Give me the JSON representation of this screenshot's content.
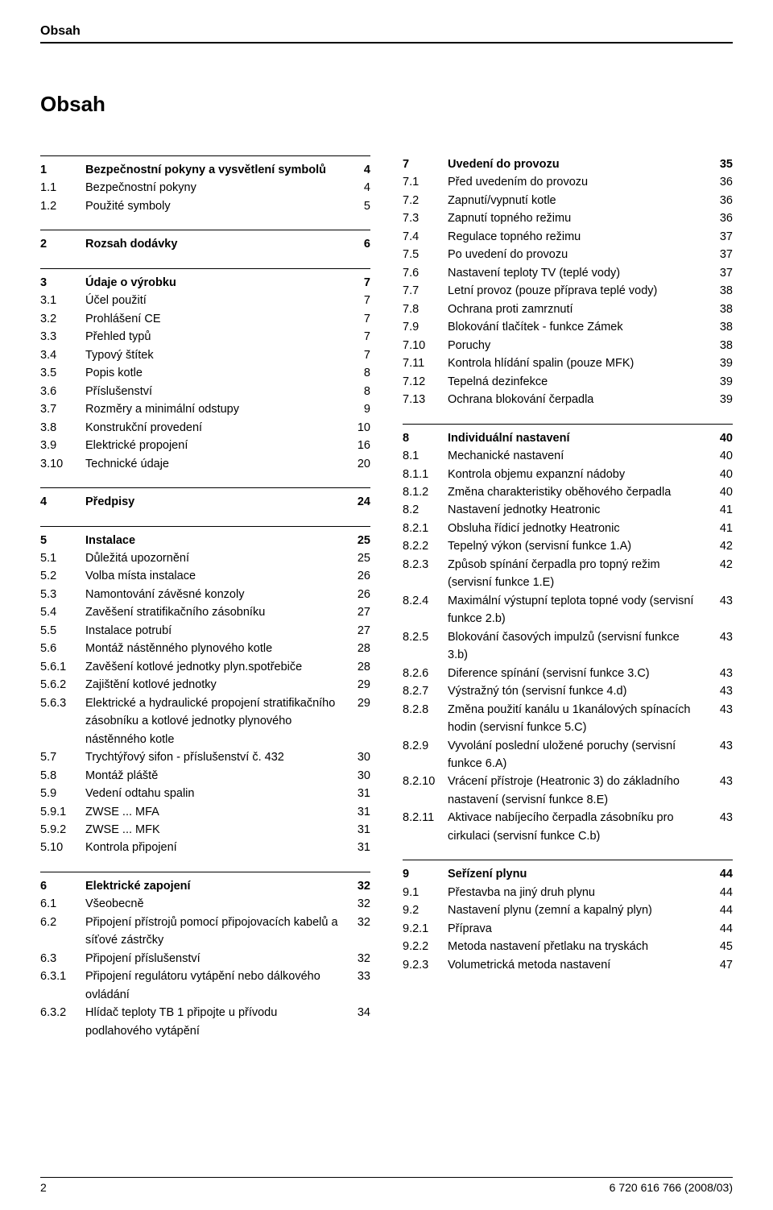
{
  "header": "Obsah",
  "title": "Obsah",
  "footer": {
    "pageNum": "2",
    "docId": "6 720 616 766 (2008/03)"
  },
  "left": [
    {
      "type": "section",
      "rows": [
        {
          "n": "1",
          "t": "Bezpečnostní pokyny a vysvětlení symbolů",
          "p": "4",
          "bold": true
        },
        {
          "n": "1.1",
          "t": "Bezpečnostní pokyny",
          "p": "4"
        },
        {
          "n": "1.2",
          "t": "Použité symboly",
          "p": "5"
        }
      ]
    },
    {
      "type": "section",
      "rows": [
        {
          "n": "2",
          "t": "Rozsah dodávky",
          "p": "6",
          "bold": true
        }
      ]
    },
    {
      "type": "section",
      "rows": [
        {
          "n": "3",
          "t": "Údaje o výrobku",
          "p": "7",
          "bold": true
        },
        {
          "n": "3.1",
          "t": "Účel použití",
          "p": "7"
        },
        {
          "n": "3.2",
          "t": "Prohlášení CE",
          "p": "7"
        },
        {
          "n": "3.3",
          "t": "Přehled typů",
          "p": "7"
        },
        {
          "n": "3.4",
          "t": "Typový štítek",
          "p": "7"
        },
        {
          "n": "3.5",
          "t": "Popis kotle",
          "p": "8"
        },
        {
          "n": "3.6",
          "t": "Příslušenství",
          "p": "8"
        },
        {
          "n": "3.7",
          "t": "Rozměry a minimální odstupy",
          "p": "9"
        },
        {
          "n": "3.8",
          "t": "Konstrukční provedení",
          "p": "10"
        },
        {
          "n": "3.9",
          "t": "Elektrické propojení",
          "p": "16"
        },
        {
          "n": "3.10",
          "t": "Technické údaje",
          "p": "20"
        }
      ]
    },
    {
      "type": "section",
      "rows": [
        {
          "n": "4",
          "t": "Předpisy",
          "p": "24",
          "bold": true
        }
      ]
    },
    {
      "type": "section",
      "rows": [
        {
          "n": "5",
          "t": "Instalace",
          "p": "25",
          "bold": true
        },
        {
          "n": "5.1",
          "t": "Důležitá upozornění",
          "p": "25"
        },
        {
          "n": "5.2",
          "t": "Volba místa instalace",
          "p": "26"
        },
        {
          "n": "5.3",
          "t": "Namontování závěsné konzoly",
          "p": "26"
        },
        {
          "n": "5.4",
          "t": "Zavěšení stratifikačního zásobníku",
          "p": "27"
        },
        {
          "n": "5.5",
          "t": "Instalace potrubí",
          "p": "27"
        },
        {
          "n": "5.6",
          "t": "Montáž nástěnného plynového kotle",
          "p": "28"
        },
        {
          "n": "5.6.1",
          "t": "Zavěšení kotlové jednotky plyn.spotřebiče",
          "p": "28"
        },
        {
          "n": "5.6.2",
          "t": "Zajištění kotlové jednotky",
          "p": "29"
        },
        {
          "n": "5.6.3",
          "t": "Elektrické a hydraulické propojení stratifikačního zásobníku a kotlové jednotky plynového nástěnného kotle",
          "p": "29"
        },
        {
          "n": "5.7",
          "t": "Trychtýřový sifon - příslušenství č. 432",
          "p": "30"
        },
        {
          "n": "5.8",
          "t": "Montáž pláště",
          "p": "30"
        },
        {
          "n": "5.9",
          "t": "Vedení odtahu spalin",
          "p": "31"
        },
        {
          "n": "5.9.1",
          "t": "ZWSE ... MFA",
          "p": "31"
        },
        {
          "n": "5.9.2",
          "t": "ZWSE ... MFK",
          "p": "31"
        },
        {
          "n": "5.10",
          "t": "Kontrola připojení",
          "p": "31"
        }
      ]
    },
    {
      "type": "section",
      "rows": [
        {
          "n": "6",
          "t": "Elektrické zapojení",
          "p": "32",
          "bold": true
        },
        {
          "n": "6.1",
          "t": "Všeobecně",
          "p": "32"
        },
        {
          "n": "6.2",
          "t": "Připojení přístrojů pomocí připojovacích kabelů a síťové zástrčky",
          "p": "32"
        },
        {
          "n": "6.3",
          "t": "Připojení příslušenství",
          "p": "32"
        },
        {
          "n": "6.3.1",
          "t": "Připojení regulátoru vytápění nebo dálkového ovládání",
          "p": "33"
        },
        {
          "n": "6.3.2",
          "t": "Hlídač teploty TB 1 připojte u přívodu podlahového vytápění",
          "p": "34"
        }
      ]
    }
  ],
  "right": [
    {
      "type": "plain",
      "rows": [
        {
          "n": "7",
          "t": "Uvedení do provozu",
          "p": "35",
          "bold": true
        },
        {
          "n": "7.1",
          "t": "Před uvedením do provozu",
          "p": "36"
        },
        {
          "n": "7.2",
          "t": "Zapnutí/vypnutí kotle",
          "p": "36"
        },
        {
          "n": "7.3",
          "t": "Zapnutí topného režimu",
          "p": "36"
        },
        {
          "n": "7.4",
          "t": "Regulace topného režimu",
          "p": "37"
        },
        {
          "n": "7.5",
          "t": "Po uvedení do provozu",
          "p": "37"
        },
        {
          "n": "7.6",
          "t": "Nastavení teploty TV (teplé vody)",
          "p": "37"
        },
        {
          "n": "7.7",
          "t": "Letní provoz (pouze příprava teplé vody)",
          "p": "38"
        },
        {
          "n": "7.8",
          "t": "Ochrana proti zamrznutí",
          "p": "38"
        },
        {
          "n": "7.9",
          "t": "Blokování tlačítek - funkce Zámek",
          "p": "38"
        },
        {
          "n": "7.10",
          "t": "Poruchy",
          "p": "38"
        },
        {
          "n": "7.11",
          "t": "Kontrola hlídání spalin (pouze MFK)",
          "p": "39"
        },
        {
          "n": "7.12",
          "t": "Tepelná dezinfekce",
          "p": "39"
        },
        {
          "n": "7.13",
          "t": "Ochrana blokování čerpadla",
          "p": "39"
        }
      ]
    },
    {
      "type": "section",
      "rows": [
        {
          "n": "8",
          "t": "Individuální nastavení",
          "p": "40",
          "bold": true
        },
        {
          "n": "8.1",
          "t": "Mechanické nastavení",
          "p": "40"
        },
        {
          "n": "8.1.1",
          "t": "Kontrola objemu expanzní nádoby",
          "p": "40"
        },
        {
          "n": "8.1.2",
          "t": "Změna charakteristiky oběhového čerpadla",
          "p": "40"
        },
        {
          "n": "8.2",
          "t": "Nastavení jednotky Heatronic",
          "p": "41"
        },
        {
          "n": "8.2.1",
          "t": "Obsluha řídicí jednotky Heatronic",
          "p": "41"
        },
        {
          "n": "8.2.2",
          "t": "Tepelný výkon (servisní funkce 1.A)",
          "p": "42"
        },
        {
          "n": "8.2.3",
          "t": "Způsob spínání čerpadla pro topný režim (servisní funkce 1.E)",
          "p": "42"
        },
        {
          "n": "8.2.4",
          "t": "Maximální výstupní teplota topné vody (servisní funkce 2.b)",
          "p": "43"
        },
        {
          "n": "8.2.5",
          "t": "Blokování časových impulzů (servisní funkce 3.b)",
          "p": "43"
        },
        {
          "n": "8.2.6",
          "t": "Diference spínání (servisní funkce 3.C)",
          "p": "43"
        },
        {
          "n": "8.2.7",
          "t": "Výstražný tón (servisní funkce 4.d)",
          "p": "43"
        },
        {
          "n": "8.2.8",
          "t": "Změna použití kanálu u 1kanálových spínacích hodin (servisní funkce 5.C)",
          "p": "43"
        },
        {
          "n": "8.2.9",
          "t": "Vyvolání poslední uložené poruchy (servisní funkce 6.A)",
          "p": "43"
        },
        {
          "n": "8.2.10",
          "t": "Vrácení přístroje (Heatronic 3) do základního nastavení (servisní funkce 8.E)",
          "p": "43"
        },
        {
          "n": "8.2.11",
          "t": "Aktivace nabíjecího čerpadla zásobníku pro cirkulaci (servisní funkce C.b)",
          "p": "43"
        }
      ]
    },
    {
      "type": "section",
      "rows": [
        {
          "n": "9",
          "t": "Seřízení plynu",
          "p": "44",
          "bold": true
        },
        {
          "n": "9.1",
          "t": "Přestavba na jiný druh plynu",
          "p": "44"
        },
        {
          "n": "9.2",
          "t": "Nastavení plynu (zemní a kapalný plyn)",
          "p": "44"
        },
        {
          "n": "9.2.1",
          "t": "Příprava",
          "p": "44"
        },
        {
          "n": "9.2.2",
          "t": "Metoda nastavení přetlaku na tryskách",
          "p": "45"
        },
        {
          "n": "9.2.3",
          "t": "Volumetrická metoda nastavení",
          "p": "47"
        }
      ]
    }
  ]
}
